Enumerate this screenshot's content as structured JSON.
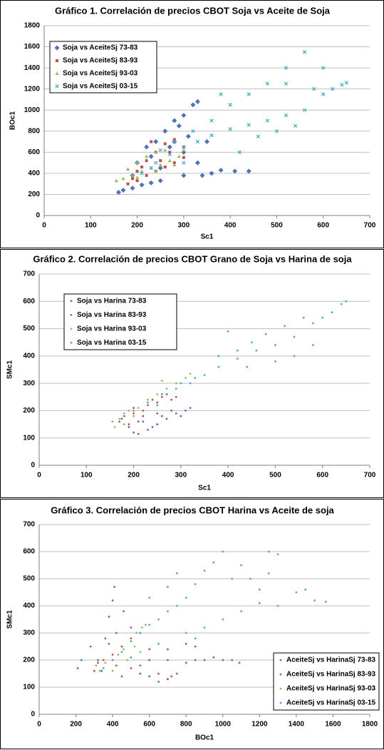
{
  "chart_data": [
    {
      "type": "scatter",
      "title": "Gráfico 1. Correlación de precios CBOT Soja vs Aceite de Soja",
      "x_label": "Sc1",
      "y_label": "BOc1",
      "xlim": [
        0,
        700
      ],
      "xticks": [
        0,
        100,
        200,
        300,
        400,
        500,
        600,
        700
      ],
      "ylim": [
        0,
        1800
      ],
      "yticks": [
        0,
        200,
        400,
        600,
        800,
        1000,
        1200,
        1400,
        1600,
        1800
      ],
      "grid": true,
      "legend": "upper left",
      "series": [
        {
          "name": "Soja vs AceiteSj 73-83",
          "color": "#4f72b8",
          "marker": "diamond",
          "x": [
            160,
            170,
            190,
            210,
            230,
            250,
            200,
            220,
            240,
            260,
            280,
            300,
            320,
            330,
            290,
            270,
            300,
            330,
            340,
            360,
            380,
            410,
            440,
            350,
            310,
            230,
            190,
            250,
            280,
            300
          ],
          "values": [
            220,
            240,
            260,
            290,
            310,
            330,
            500,
            650,
            700,
            800,
            900,
            950,
            1050,
            1080,
            850,
            650,
            600,
            500,
            380,
            400,
            430,
            420,
            420,
            700,
            750,
            560,
            380,
            450,
            700,
            380
          ]
        },
        {
          "name": "Soja vs AceiteSj 83-93",
          "color": "#c0504d",
          "marker": "square",
          "x": [
            180,
            200,
            220,
            240,
            260,
            280,
            300,
            200,
            220,
            240,
            260,
            280,
            230,
            250,
            270,
            210,
            300,
            190
          ],
          "values": [
            300,
            330,
            380,
            420,
            460,
            500,
            550,
            420,
            520,
            600,
            680,
            720,
            700,
            520,
            600,
            460,
            650,
            350
          ]
        },
        {
          "name": "Soja vs AceiteSj 93-03",
          "color": "#9bbb59",
          "marker": "triangle",
          "x": [
            155,
            170,
            190,
            210,
            230,
            250,
            270,
            290,
            180,
            200,
            220,
            240,
            260,
            200,
            240,
            280,
            300
          ],
          "values": [
            330,
            350,
            380,
            420,
            450,
            480,
            520,
            560,
            440,
            500,
            560,
            600,
            620,
            360,
            420,
            480,
            620
          ]
        },
        {
          "name": "Soja vs AceiteSj 03-15",
          "color": "#4bacc6",
          "marker": "x",
          "x": [
            210,
            240,
            270,
            300,
            330,
            360,
            400,
            440,
            480,
            520,
            560,
            600,
            640,
            650,
            560,
            520,
            480,
            440,
            400,
            360,
            320,
            280,
            420,
            460,
            500,
            540,
            580,
            620,
            380,
            520,
            600,
            250,
            230,
            300
          ],
          "values": [
            400,
            500,
            580,
            650,
            700,
            760,
            820,
            860,
            900,
            950,
            1000,
            1150,
            1240,
            1260,
            1550,
            1400,
            1250,
            1150,
            1050,
            900,
            800,
            700,
            600,
            750,
            800,
            850,
            1200,
            1200,
            1150,
            1250,
            1400,
            620,
            450,
            500
          ]
        }
      ]
    },
    {
      "type": "scatter",
      "title": "Gráfico 2. Correlación de precios CBOT Grano de Soja vs Harina de soja",
      "x_label": "Sc1",
      "y_label": "SMc1",
      "xlim": [
        0,
        700
      ],
      "xticks": [
        0,
        100,
        200,
        300,
        400,
        500,
        600,
        700
      ],
      "ylim": [
        0,
        700
      ],
      "yticks": [
        0,
        100,
        200,
        300,
        400,
        500,
        600,
        700
      ],
      "grid": true,
      "legend": "upper left",
      "series": [
        {
          "name": "Soja vs Harina 73-83",
          "color": "#4f72b8",
          "marker": "dot",
          "x": [
            170,
            190,
            200,
            210,
            230,
            250,
            270,
            290,
            310,
            320,
            180,
            220,
            260,
            300,
            240,
            280
          ],
          "values": [
            160,
            140,
            120,
            115,
            130,
            150,
            170,
            190,
            200,
            210,
            180,
            160,
            180,
            180,
            140,
            200
          ]
        },
        {
          "name": "Soja vs Harina 83-93",
          "color": "#c0504d",
          "marker": "dot",
          "x": [
            175,
            190,
            200,
            210,
            220,
            230,
            240,
            250,
            260,
            270,
            280,
            290,
            200,
            220,
            250
          ],
          "values": [
            170,
            150,
            190,
            160,
            200,
            220,
            240,
            230,
            250,
            260,
            240,
            250,
            210,
            180,
            190
          ]
        },
        {
          "name": "Soja vs Harina 93-03",
          "color": "#9bbb59",
          "marker": "dot",
          "x": [
            155,
            160,
            170,
            180,
            190,
            200,
            210,
            230,
            250,
            270,
            290,
            310,
            320,
            260,
            180
          ],
          "values": [
            160,
            140,
            170,
            190,
            200,
            180,
            210,
            240,
            260,
            280,
            300,
            320,
            335,
            310,
            150
          ]
        },
        {
          "name": "Soja vs Harina 03-15",
          "color": "#4bacc6",
          "marker": "dot",
          "x": [
            200,
            230,
            260,
            290,
            320,
            350,
            380,
            420,
            460,
            500,
            540,
            580,
            620,
            650,
            640,
            600,
            560,
            520,
            480,
            450,
            400,
            420,
            380,
            500,
            540,
            580,
            330,
            300,
            250,
            440
          ],
          "values": [
            200,
            230,
            260,
            280,
            300,
            330,
            360,
            390,
            420,
            440,
            470,
            520,
            560,
            600,
            590,
            540,
            540,
            510,
            480,
            450,
            490,
            420,
            400,
            380,
            400,
            440,
            320,
            300,
            220,
            360
          ]
        }
      ]
    },
    {
      "type": "scatter",
      "title": "Gráfico 3. Correlación de precios CBOT Harina vs Aceite de soja",
      "x_label": "BOc1",
      "y_label": "SMc1",
      "xlim": [
        0,
        1800
      ],
      "xticks": [
        0,
        200,
        400,
        600,
        800,
        1000,
        1200,
        1400,
        1600,
        1800
      ],
      "ylim": [
        0,
        700
      ],
      "yticks": [
        0,
        100,
        200,
        300,
        400,
        500,
        600,
        700
      ],
      "grid": true,
      "legend": "lower right",
      "series": [
        {
          "name": "AceiteSj vs HarinaSj 73-83",
          "color": "#4f72b8",
          "marker": "dot",
          "x": [
            210,
            230,
            280,
            320,
            360,
            380,
            400,
            410,
            420,
            450,
            500,
            550,
            600,
            650,
            700,
            750,
            800,
            850,
            900,
            950,
            1000,
            1050,
            1090,
            600,
            700,
            380,
            340,
            460,
            500
          ],
          "values": [
            170,
            200,
            250,
            200,
            280,
            360,
            420,
            470,
            300,
            250,
            210,
            180,
            140,
            120,
            130,
            150,
            190,
            200,
            200,
            210,
            200,
            200,
            190,
            200,
            200,
            260,
            160,
            380,
            320
          ]
        },
        {
          "name": "AceiteSj vs HarinaSj 83-93",
          "color": "#c0504d",
          "marker": "dot",
          "x": [
            300,
            320,
            350,
            400,
            450,
            500,
            550,
            600,
            650,
            700,
            720,
            500,
            450,
            600,
            700,
            800,
            850,
            550,
            420
          ],
          "values": [
            160,
            190,
            200,
            220,
            250,
            280,
            300,
            240,
            150,
            130,
            140,
            170,
            140,
            200,
            240,
            260,
            250,
            150,
            180
          ]
        },
        {
          "name": "AceiteSj vs HarinaSj 93-03",
          "color": "#9bbb59",
          "marker": "dot",
          "x": [
            310,
            330,
            360,
            400,
            430,
            460,
            500,
            530,
            560,
            580,
            520,
            480,
            400,
            550
          ],
          "values": [
            180,
            160,
            190,
            200,
            220,
            240,
            270,
            300,
            320,
            330,
            250,
            200,
            160,
            230
          ]
        },
        {
          "name": "AceiteSj vs HarinaSj 03-15",
          "color": "#4bacc6",
          "marker": "dot",
          "x": [
            350,
            400,
            450,
            500,
            550,
            600,
            650,
            700,
            750,
            800,
            850,
            900,
            950,
            1000,
            1050,
            1100,
            1150,
            1200,
            1250,
            1300,
            1250,
            1200,
            1100,
            1000,
            900,
            800,
            1300,
            1400,
            1500,
            1560,
            1450,
            700,
            750,
            600,
            650,
            850,
            500
          ],
          "values": [
            170,
            200,
            230,
            270,
            300,
            330,
            350,
            380,
            400,
            430,
            480,
            530,
            560,
            600,
            500,
            550,
            500,
            460,
            520,
            590,
            600,
            410,
            380,
            350,
            320,
            300,
            400,
            450,
            420,
            415,
            460,
            470,
            520,
            430,
            260,
            280,
            210
          ]
        }
      ]
    }
  ]
}
